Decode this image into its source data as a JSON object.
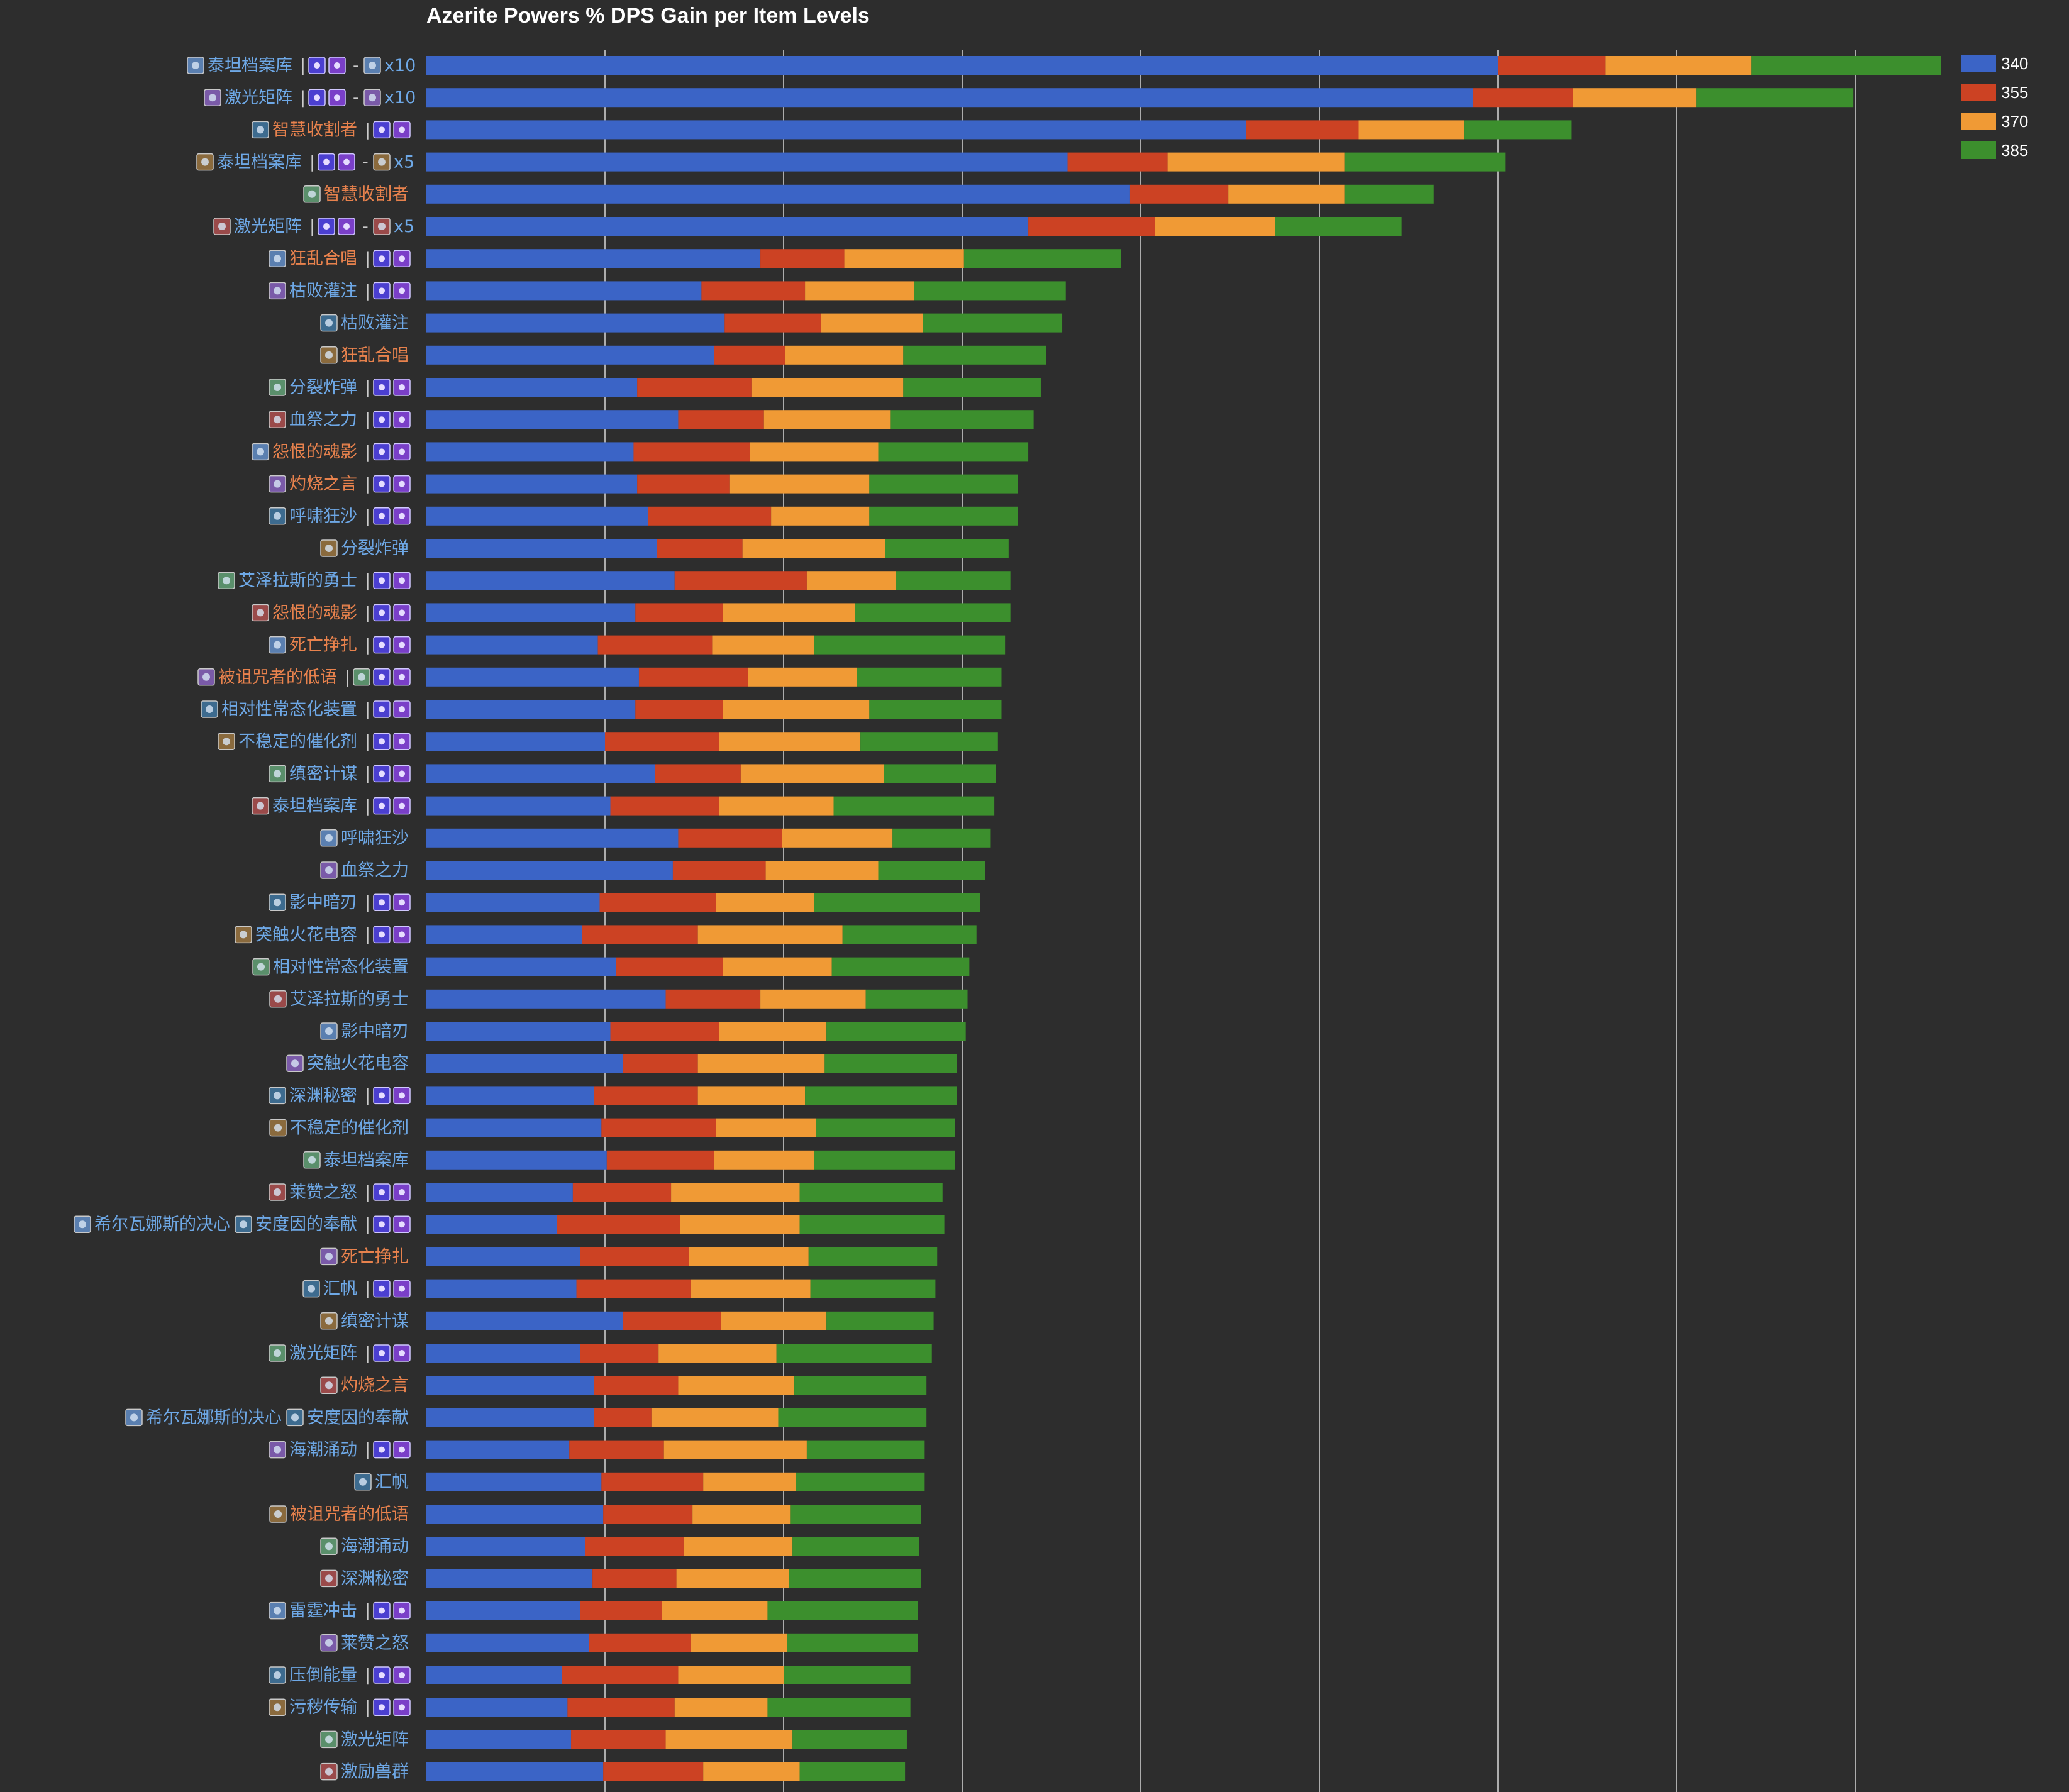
{
  "title": "Azerite Powers % DPS Gain per Item Levels",
  "colors": {
    "background": "#2d2d2d",
    "grid": "#cccccc",
    "label_blue": "#6ea8e6",
    "label_orange": "#e8824d",
    "sep": "#cccccc"
  },
  "chart_data": {
    "type": "bar",
    "orientation": "horizontal",
    "stacked": true,
    "legend_position": "top-right",
    "grid": true,
    "xlim": [
      0,
      8.5
    ],
    "series": [
      {
        "name": "340",
        "color": "#3b64c6"
      },
      {
        "name": "355",
        "color": "#cc4223"
      },
      {
        "name": "370",
        "color": "#f09a35"
      },
      {
        "name": "385",
        "color": "#3c8f2d"
      }
    ],
    "rows": [
      {
        "label": "泰坦档案库",
        "icon": "titanic-archive-icon",
        "style": "blue",
        "suffix": "x10",
        "suffix_icon": "gem-icon",
        "values": [
          6.0,
          0.6,
          0.82,
          1.06
        ]
      },
      {
        "label": "激光矩阵",
        "icon": "laser-matrix-icon",
        "style": "blue",
        "suffix": "x10",
        "suffix_icon": "gem-icon",
        "values": [
          5.86,
          0.56,
          0.69,
          0.88
        ]
      },
      {
        "label": "智慧收割者",
        "icon": "wisdom-reaper-icon",
        "style": "orange",
        "suffix": "",
        "values": [
          4.59,
          0.63,
          0.59,
          0.6
        ]
      },
      {
        "label": "泰坦档案库",
        "icon": "titanic-archive-icon",
        "style": "blue",
        "suffix": "x5",
        "suffix_icon": "gem-icon",
        "values": [
          3.59,
          0.56,
          0.99,
          0.9
        ]
      },
      {
        "label": "智慧收割者",
        "icon": "wisdom-reaper-icon",
        "style": "orange",
        "plain": true,
        "values": [
          3.94,
          0.55,
          0.65,
          0.5
        ]
      },
      {
        "label": "激光矩阵",
        "icon": "laser-matrix-icon",
        "style": "blue",
        "suffix": "x5",
        "suffix_icon": "gem-icon",
        "values": [
          3.37,
          0.71,
          0.67,
          0.71
        ]
      },
      {
        "label": "狂乱合唱",
        "icon": "frenzied-chorus-icon",
        "style": "orange",
        "values": [
          1.87,
          0.47,
          0.67,
          0.88
        ]
      },
      {
        "label": "枯败灌注",
        "icon": "blight-infusion-icon",
        "style": "blue",
        "values": [
          1.54,
          0.58,
          0.61,
          0.85
        ]
      },
      {
        "label": "枯败灌注",
        "icon": "blight-infusion-icon",
        "style": "blue",
        "plain": true,
        "values": [
          1.67,
          0.54,
          0.57,
          0.78
        ]
      },
      {
        "label": "狂乱合唱",
        "icon": "frenzied-chorus-icon",
        "style": "orange",
        "plain": true,
        "values": [
          1.61,
          0.4,
          0.66,
          0.8
        ]
      },
      {
        "label": "分裂炸弹",
        "icon": "splitting-bomb-icon",
        "style": "blue",
        "values": [
          1.18,
          0.64,
          0.85,
          0.77
        ]
      },
      {
        "label": "血祭之力",
        "icon": "blood-sacrifice-icon",
        "style": "blue",
        "values": [
          1.41,
          0.48,
          0.71,
          0.8
        ]
      },
      {
        "label": "怨恨的魂影",
        "icon": "spite-shadow-icon",
        "style": "orange",
        "values": [
          1.16,
          0.65,
          0.72,
          0.84
        ]
      },
      {
        "label": "灼烧之言",
        "icon": "searing-words-icon",
        "style": "orange",
        "values": [
          1.18,
          0.52,
          0.78,
          0.83
        ]
      },
      {
        "label": "呼啸狂沙",
        "icon": "howling-sands-icon",
        "style": "blue",
        "values": [
          1.24,
          0.69,
          0.55,
          0.83
        ]
      },
      {
        "label": "分裂炸弹",
        "icon": "splitting-bomb-icon",
        "style": "blue",
        "plain": true,
        "values": [
          1.29,
          0.48,
          0.8,
          0.69
        ]
      },
      {
        "label": "艾泽拉斯的勇士",
        "icon": "champion-of-azeroth-icon",
        "style": "blue",
        "values": [
          1.39,
          0.74,
          0.5,
          0.64
        ]
      },
      {
        "label": "怨恨的魂影",
        "icon": "spite-shadow-icon",
        "style": "orange",
        "values": [
          1.17,
          0.49,
          0.74,
          0.87
        ]
      },
      {
        "label": "死亡挣扎",
        "icon": "death-throes-icon",
        "style": "orange",
        "values": [
          0.96,
          0.64,
          0.57,
          1.07
        ]
      },
      {
        "label": "被诅咒者的低语",
        "icon": "whispers-of-the-damned-icon",
        "style": "orange",
        "extra_icon": true,
        "values": [
          1.19,
          0.61,
          0.61,
          0.81
        ]
      },
      {
        "label": "相对性常态化装置",
        "icon": "relational-normalization-gizmo-icon",
        "style": "blue",
        "values": [
          1.17,
          0.49,
          0.82,
          0.74
        ]
      },
      {
        "label": "不稳定的催化剂",
        "icon": "unstable-catalyst-icon",
        "style": "blue",
        "values": [
          1.0,
          0.64,
          0.79,
          0.77
        ]
      },
      {
        "label": "缜密计谋",
        "icon": "meticulous-scheming-icon",
        "style": "blue",
        "values": [
          1.28,
          0.48,
          0.8,
          0.63
        ]
      },
      {
        "label": "泰坦档案库",
        "icon": "titanic-archive-icon",
        "style": "blue",
        "values": [
          1.03,
          0.61,
          0.64,
          0.9
        ]
      },
      {
        "label": "呼啸狂沙",
        "icon": "howling-sands-icon",
        "style": "blue",
        "plain": true,
        "values": [
          1.41,
          0.58,
          0.62,
          0.55
        ]
      },
      {
        "label": "血祭之力",
        "icon": "blood-sacrifice-icon",
        "style": "blue",
        "plain": true,
        "values": [
          1.38,
          0.52,
          0.63,
          0.6
        ]
      },
      {
        "label": "影中暗刃",
        "icon": "blade-in-the-shadows-icon",
        "style": "blue",
        "values": [
          0.97,
          0.65,
          0.55,
          0.93
        ]
      },
      {
        "label": "突触火花电容",
        "icon": "synapse-shock-icon",
        "style": "blue",
        "values": [
          0.87,
          0.65,
          0.81,
          0.75
        ]
      },
      {
        "label": "相对性常态化装置",
        "icon": "relational-normalization-gizmo-icon",
        "style": "blue",
        "plain": true,
        "values": [
          1.06,
          0.6,
          0.61,
          0.77
        ]
      },
      {
        "label": "艾泽拉斯的勇士",
        "icon": "champion-of-azeroth-icon",
        "style": "blue",
        "plain": true,
        "values": [
          1.34,
          0.53,
          0.59,
          0.57
        ]
      },
      {
        "label": "影中暗刃",
        "icon": "blade-in-the-shadows-icon",
        "style": "blue",
        "plain": true,
        "values": [
          1.03,
          0.61,
          0.6,
          0.78
        ]
      },
      {
        "label": "突触火花电容",
        "icon": "synapse-shock-icon",
        "style": "blue",
        "plain": true,
        "values": [
          1.1,
          0.42,
          0.71,
          0.74
        ]
      },
      {
        "label": "深渊秘密",
        "icon": "secrets-of-the-deep-icon",
        "style": "blue",
        "values": [
          0.94,
          0.58,
          0.6,
          0.85
        ]
      },
      {
        "label": "不稳定的催化剂",
        "icon": "unstable-catalyst-icon",
        "style": "blue",
        "plain": true,
        "values": [
          0.98,
          0.64,
          0.56,
          0.78
        ]
      },
      {
        "label": "泰坦档案库",
        "icon": "titanic-archive-icon",
        "style": "blue",
        "plain": true,
        "values": [
          1.01,
          0.6,
          0.56,
          0.79
        ]
      },
      {
        "label": "莱赞之怒",
        "icon": "rezans-fury-icon",
        "style": "blue",
        "values": [
          0.82,
          0.55,
          0.72,
          0.8
        ]
      },
      {
        "label": "希尔瓦娜斯的决心",
        "second_label": "安度因的奉献",
        "icon": "sylvanas-resolve-icon",
        "second_icon": "anduins-dedication-icon",
        "style": "blue",
        "values": [
          0.73,
          0.69,
          0.67,
          0.81
        ]
      },
      {
        "label": "死亡挣扎",
        "icon": "death-throes-icon",
        "style": "orange",
        "plain": true,
        "values": [
          0.86,
          0.61,
          0.67,
          0.72
        ]
      },
      {
        "label": "汇帆",
        "icon": "gathering-storm-icon",
        "style": "blue",
        "values": [
          0.84,
          0.64,
          0.67,
          0.7
        ]
      },
      {
        "label": "缜密计谋",
        "icon": "meticulous-scheming-icon",
        "style": "blue",
        "plain": true,
        "values": [
          1.1,
          0.55,
          0.59,
          0.6
        ]
      },
      {
        "label": "激光矩阵",
        "icon": "laser-matrix-icon",
        "style": "blue",
        "values": [
          0.86,
          0.44,
          0.66,
          0.87
        ]
      },
      {
        "label": "灼烧之言",
        "icon": "searing-words-icon",
        "style": "orange",
        "plain": true,
        "values": [
          0.94,
          0.47,
          0.65,
          0.74
        ]
      },
      {
        "label": "希尔瓦娜斯的决心",
        "second_label": "安度因的奉献",
        "icon": "sylvanas-resolve-icon",
        "second_icon": "anduins-dedication-icon",
        "style": "blue",
        "plain": true,
        "values": [
          0.94,
          0.32,
          0.71,
          0.83
        ]
      },
      {
        "label": "海潮涌动",
        "icon": "surging-tides-icon",
        "style": "blue",
        "values": [
          0.8,
          0.53,
          0.8,
          0.66
        ]
      },
      {
        "label": "汇帆",
        "icon": "gathering-storm-icon",
        "style": "blue",
        "plain": true,
        "values": [
          0.98,
          0.57,
          0.52,
          0.72
        ]
      },
      {
        "label": "被诅咒者的低语",
        "icon": "whispers-of-the-damned-icon",
        "style": "orange",
        "plain": true,
        "values": [
          0.99,
          0.5,
          0.55,
          0.73
        ]
      },
      {
        "label": "海潮涌动",
        "icon": "surging-tides-icon",
        "style": "blue",
        "plain": true,
        "values": [
          0.89,
          0.55,
          0.61,
          0.71
        ]
      },
      {
        "label": "深渊秘密",
        "icon": "secrets-of-the-deep-icon",
        "style": "blue",
        "plain": true,
        "values": [
          0.93,
          0.47,
          0.63,
          0.74
        ]
      },
      {
        "label": "雷霆冲击",
        "icon": "thunderous-blast-icon",
        "style": "blue",
        "values": [
          0.86,
          0.46,
          0.59,
          0.84
        ]
      },
      {
        "label": "莱赞之怒",
        "icon": "rezans-fury-icon",
        "style": "blue",
        "plain": true,
        "values": [
          0.91,
          0.57,
          0.54,
          0.73
        ]
      },
      {
        "label": "压倒能量",
        "icon": "overwhelming-power-icon",
        "style": "blue",
        "values": [
          0.76,
          0.65,
          0.59,
          0.71
        ]
      },
      {
        "label": "污秽传输",
        "icon": "filthy-transfusion-icon",
        "style": "blue",
        "values": [
          0.79,
          0.6,
          0.52,
          0.8
        ]
      },
      {
        "label": "激光矩阵",
        "icon": "laser-matrix-icon",
        "style": "blue",
        "plain": true,
        "values": [
          0.81,
          0.53,
          0.71,
          0.64
        ]
      },
      {
        "label": "激励兽群",
        "icon": "pack-spirit-icon",
        "style": "blue",
        "plain": true,
        "values": [
          0.99,
          0.56,
          0.54,
          0.59
        ]
      }
    ]
  }
}
